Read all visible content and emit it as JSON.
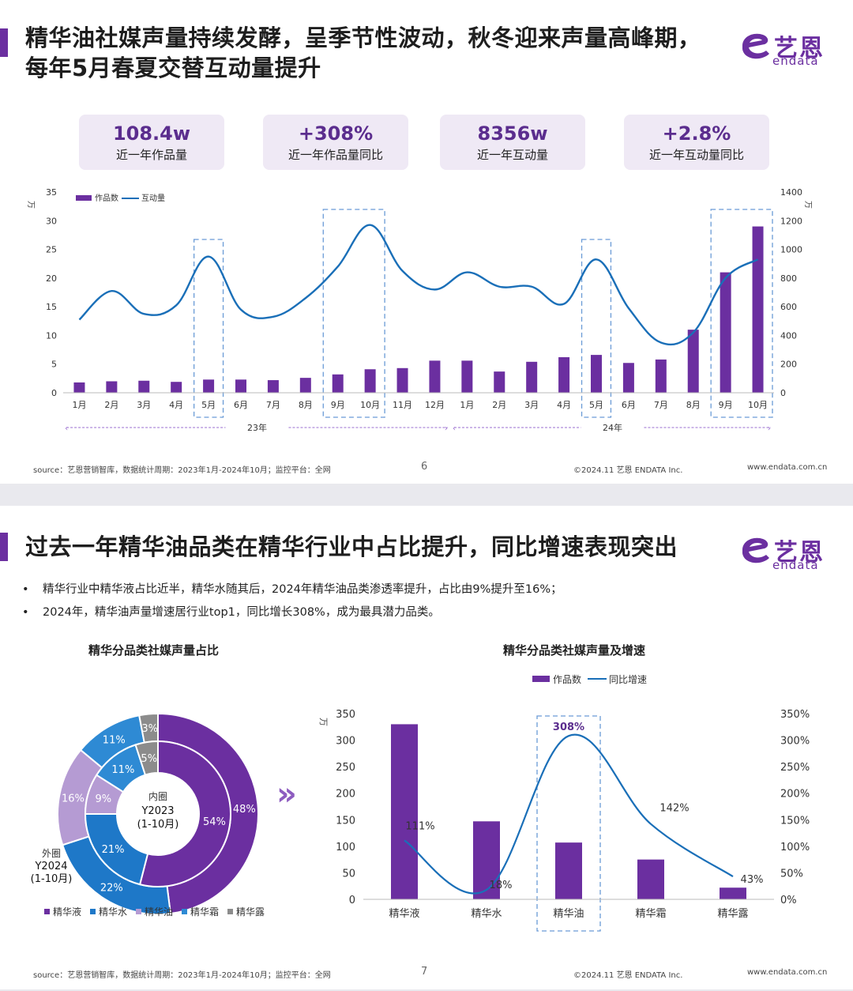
{
  "slide1": {
    "title_line1": "精华油社媒声量持续发酵，呈季节性波动，秋冬迎来声量高峰期，",
    "title_line2": "每年5月春夏交替互动量提升",
    "logo": {
      "cn": "艺恩",
      "en": "endata"
    },
    "kpis": [
      {
        "value": "108.4w",
        "label": "近一年作品量"
      },
      {
        "value": "+308%",
        "label": "近一年作品量同比"
      },
      {
        "value": "8356w",
        "label": "近一年互动量"
      },
      {
        "value": "+2.8%",
        "label": "近一年互动量同比"
      }
    ],
    "footer_source": "source：艺恩营销智库，数据统计周期：2023年1月-2024年10月；监控平台：全网",
    "page": "6",
    "copyright": "©2024.11  艺恩 ENDATA Inc.",
    "website": "www.endata.com.cn"
  },
  "slide2": {
    "title": "过去一年精华油品类在精华行业中占比提升，同比增速表现突出",
    "logo": {
      "cn": "艺恩",
      "en": "endata"
    },
    "bullets": [
      "精华行业中精华液占比近半，精华水随其后，2024年精华油品类渗透率提升，占比由9%提升至16%；",
      "2024年，精华油声量增速居行业top1，同比增长308%，成为最具潜力品类。"
    ],
    "bullet_symbol": "•",
    "footer_source": "source：艺恩营销智库，数据统计周期：2023年1月-2024年10月；监控平台：全网",
    "page": "7",
    "copyright": "©2024.11  艺恩 ENDATA Inc.",
    "website": "www.endata.com.cn",
    "arrow_glyph": "»"
  },
  "chart_data": [
    {
      "type": "bar+line",
      "title": "",
      "legend": [
        "作品数",
        "互动量"
      ],
      "legend_position": "top-left",
      "y_left_unit": "万",
      "y_right_unit": "万",
      "y_left_ticks": [
        0,
        5,
        10,
        15,
        20,
        25,
        30,
        35
      ],
      "y_right_ticks": [
        0,
        200,
        400,
        600,
        800,
        1000,
        1200,
        1400
      ],
      "ylim_left": [
        0,
        35
      ],
      "ylim_right": [
        0,
        1400
      ],
      "categories": [
        "1月",
        "2月",
        "3月",
        "4月",
        "5月",
        "6月",
        "7月",
        "8月",
        "9月",
        "10月",
        "11月",
        "12月",
        "1月",
        "2月",
        "3月",
        "4月",
        "5月",
        "6月",
        "7月",
        "8月",
        "9月",
        "10月"
      ],
      "year_groups": [
        {
          "label": "23年",
          "start": 0,
          "end": 11
        },
        {
          "label": "24年",
          "start": 12,
          "end": 21
        }
      ],
      "bar_series": {
        "name": "作品数",
        "values": [
          1.8,
          2.0,
          2.1,
          1.9,
          2.3,
          2.3,
          2.2,
          2.6,
          3.2,
          4.1,
          4.3,
          5.6,
          5.6,
          3.7,
          5.4,
          6.2,
          6.6,
          5.2,
          5.8,
          11.0,
          21.0,
          29.0
        ]
      },
      "line_series": {
        "name": "互动量",
        "values": [
          510,
          710,
          550,
          610,
          950,
          580,
          530,
          660,
          880,
          1170,
          850,
          720,
          840,
          740,
          740,
          620,
          930,
          590,
          350,
          420,
          800,
          930
        ]
      },
      "highlight_indices": [
        4,
        [
          8,
          9
        ],
        16,
        [
          20,
          21
        ]
      ],
      "grid": false
    },
    {
      "type": "donut",
      "title": "精华分品类社媒声量占比",
      "categories": [
        "精华液",
        "精华水",
        "精华油",
        "精华霜",
        "精华露"
      ],
      "colors": [
        "#6b2fa0",
        "#1e78c8",
        "#b59bd3",
        "#2e8ad4",
        "#8c8c8c"
      ],
      "inner": {
        "label_line1": "内圈",
        "label_line2": "Y2023",
        "label_line3": "(1-10月)",
        "values": [
          54,
          21,
          9,
          11,
          5
        ]
      },
      "outer": {
        "label_line1": "外圈",
        "label_line2": "Y2024",
        "label_line3": "(1-10月)",
        "values": [
          48,
          22,
          16,
          11,
          3
        ]
      },
      "legend_position": "bottom"
    },
    {
      "type": "bar+line",
      "title": "精华分品类社媒声量及增速",
      "legend": [
        "作品数",
        "同比增速"
      ],
      "legend_position": "top",
      "y_left_unit": "万",
      "y_left_ticks": [
        0,
        50,
        100,
        150,
        200,
        250,
        300,
        350
      ],
      "y_right_ticks": [
        "0%",
        "50%",
        "100%",
        "150%",
        "200%",
        "250%",
        "300%",
        "350%"
      ],
      "ylim_left": [
        0,
        350
      ],
      "ylim_right": [
        0,
        350
      ],
      "categories": [
        "精华液",
        "精华水",
        "精华油",
        "精华霜",
        "精华露"
      ],
      "bar_series": {
        "name": "作品数",
        "values": [
          330,
          147,
          107,
          75,
          22
        ]
      },
      "line_series": {
        "name": "同比增速",
        "values": [
          111,
          18,
          308,
          142,
          43
        ],
        "labels": [
          "111%",
          "18%",
          "308%",
          "142%",
          "43%"
        ]
      },
      "highlight_index": 2
    }
  ]
}
